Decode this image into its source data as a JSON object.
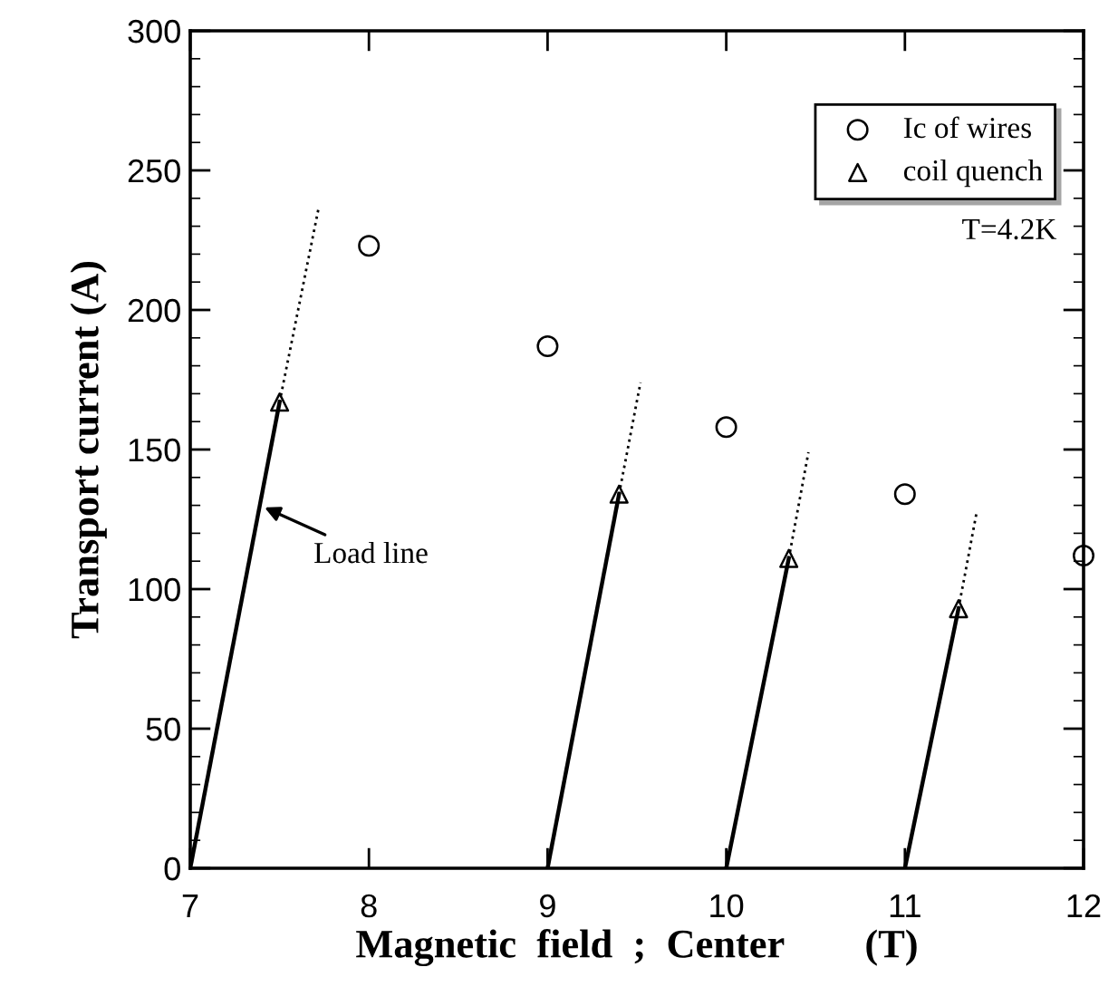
{
  "chart_data": {
    "type": "scatter",
    "xlabel": "Magnetic  field  ;  Center        (T)",
    "ylabel": "Transport current (A)",
    "xlim": [
      7,
      12
    ],
    "ylim": [
      0,
      300
    ],
    "xticks": [
      7,
      8,
      9,
      10,
      11,
      12
    ],
    "yticks": [
      0,
      50,
      100,
      150,
      200,
      250,
      300
    ],
    "grid": false,
    "legend": "top right",
    "series": [
      {
        "name": "Ic of wires",
        "marker": "circle",
        "color": "#000000",
        "x": [
          8,
          9,
          10,
          11,
          12
        ],
        "values": [
          223,
          187,
          158,
          134,
          112
        ]
      },
      {
        "name": "coil quench",
        "marker": "triangle",
        "color": "#000000",
        "x": [
          7.5,
          9.4,
          10.35,
          11.3
        ],
        "values": [
          167,
          134,
          111,
          93
        ]
      },
      {
        "type": "line",
        "line_style": "solid",
        "color": "#000000",
        "x": [
          7,
          7.5
        ],
        "values": [
          0,
          167
        ]
      },
      {
        "type": "line",
        "line_style": "dotted",
        "color": "#000000",
        "x": [
          7.5,
          7.72
        ],
        "values": [
          167,
          237
        ]
      },
      {
        "type": "line",
        "line_style": "solid",
        "color": "#000000",
        "x": [
          9,
          9.4
        ],
        "values": [
          0,
          134
        ]
      },
      {
        "type": "line",
        "line_style": "dotted",
        "color": "#000000",
        "x": [
          9.4,
          9.52
        ],
        "values": [
          134,
          174
        ]
      },
      {
        "type": "line",
        "line_style": "solid",
        "color": "#000000",
        "x": [
          10,
          10.35
        ],
        "values": [
          0,
          111
        ]
      },
      {
        "type": "line",
        "line_style": "dotted",
        "color": "#000000",
        "x": [
          10.35,
          10.46
        ],
        "values": [
          111,
          149
        ]
      },
      {
        "type": "line",
        "line_style": "solid",
        "color": "#000000",
        "x": [
          11,
          11.3
        ],
        "values": [
          0,
          93
        ]
      },
      {
        "type": "line",
        "line_style": "dotted",
        "color": "#000000",
        "x": [
          11.3,
          11.4
        ],
        "values": [
          93,
          127
        ]
      }
    ],
    "annotations": [
      {
        "text": "Load line",
        "x": 7.39,
        "y": 130
      },
      "T=4.2K"
    ]
  }
}
